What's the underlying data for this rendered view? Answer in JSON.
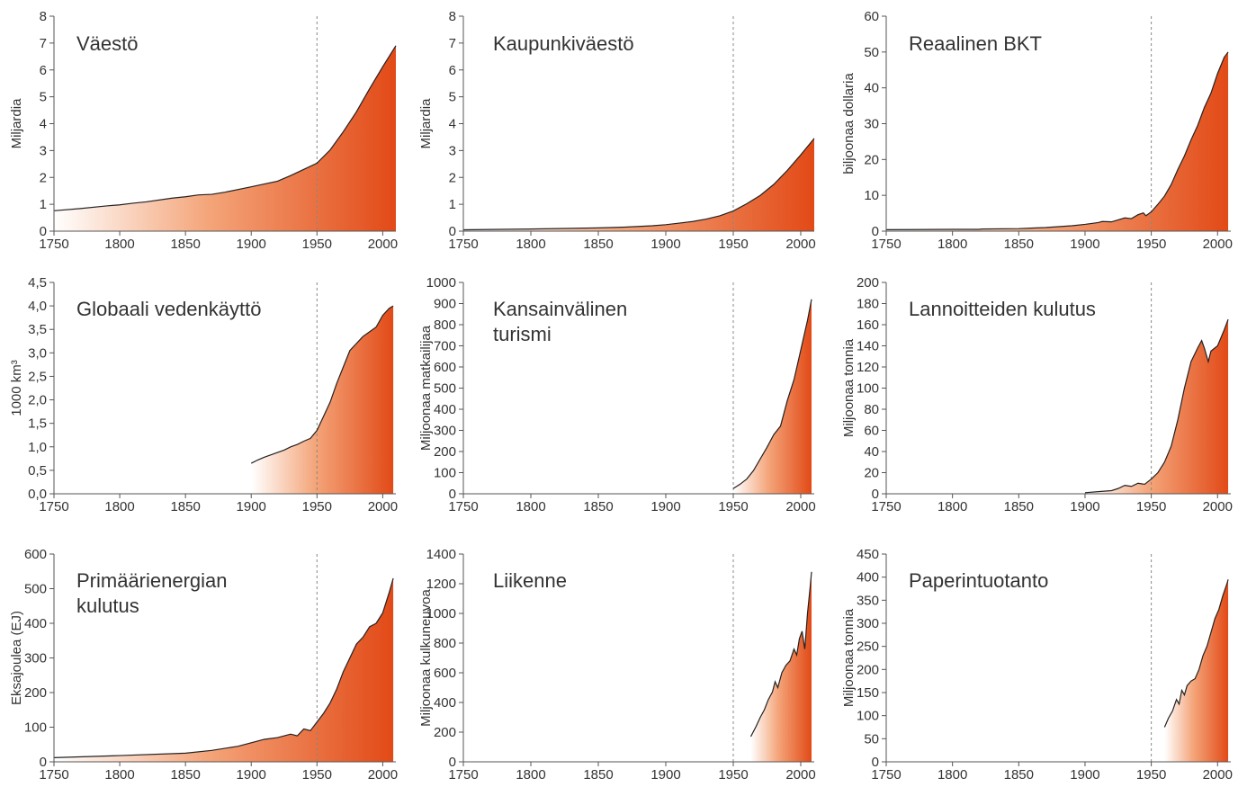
{
  "colors": {
    "fill_start": "#ffffff",
    "fill_end": "#e24a17",
    "line": "#222222",
    "axis": "#555555",
    "reference_line": "#888888"
  },
  "reference_line_year": 1950,
  "chart_data": [
    {
      "type": "area",
      "title": "Väestö",
      "title_lines": [
        "Väestö"
      ],
      "xlabel": "",
      "ylabel": "Miljardia",
      "xlim": [
        1750,
        2010
      ],
      "ylim": [
        0,
        8
      ],
      "xticks": [
        1750,
        1800,
        1850,
        1900,
        1950,
        2000
      ],
      "yticks": [
        0,
        1,
        2,
        3,
        4,
        5,
        6,
        7,
        8
      ],
      "ytick_labels": [
        "0",
        "1",
        "2",
        "3",
        "4",
        "5",
        "6",
        "7",
        "8"
      ],
      "fill_start_year": 1750,
      "x": [
        1750,
        1770,
        1790,
        1800,
        1810,
        1820,
        1840,
        1850,
        1860,
        1870,
        1880,
        1900,
        1920,
        1930,
        1940,
        1950,
        1960,
        1970,
        1980,
        1990,
        2000,
        2010
      ],
      "values": [
        0.76,
        0.84,
        0.94,
        0.98,
        1.04,
        1.09,
        1.23,
        1.28,
        1.35,
        1.37,
        1.45,
        1.65,
        1.86,
        2.07,
        2.3,
        2.53,
        3.02,
        3.7,
        4.44,
        5.3,
        6.12,
        6.9
      ]
    },
    {
      "type": "area",
      "title": "Kaupunkiväestö",
      "title_lines": [
        "Kaupunkiväestö"
      ],
      "xlabel": "",
      "ylabel": "Miljardia",
      "xlim": [
        1750,
        2010
      ],
      "ylim": [
        0,
        8
      ],
      "xticks": [
        1750,
        1800,
        1850,
        1900,
        1950,
        2000
      ],
      "yticks": [
        0,
        1,
        2,
        3,
        4,
        5,
        6,
        7,
        8
      ],
      "ytick_labels": [
        "0",
        "1",
        "2",
        "3",
        "4",
        "5",
        "6",
        "7",
        "8"
      ],
      "fill_start_year": 1750,
      "x": [
        1750,
        1800,
        1850,
        1870,
        1890,
        1900,
        1910,
        1920,
        1930,
        1940,
        1950,
        1960,
        1970,
        1980,
        1990,
        2000,
        2010
      ],
      "values": [
        0.05,
        0.08,
        0.12,
        0.15,
        0.2,
        0.24,
        0.3,
        0.36,
        0.45,
        0.57,
        0.75,
        1.02,
        1.33,
        1.74,
        2.26,
        2.84,
        3.45
      ]
    },
    {
      "type": "area",
      "title": "Reaalinen BKT",
      "title_lines": [
        "Reaalinen BKT"
      ],
      "xlabel": "",
      "ylabel": "biljoonaa dollaria",
      "xlim": [
        1750,
        2010
      ],
      "ylim": [
        0,
        60
      ],
      "xticks": [
        1750,
        1800,
        1850,
        1900,
        1950,
        2000
      ],
      "yticks": [
        0,
        10,
        20,
        30,
        40,
        50,
        60
      ],
      "ytick_labels": [
        "0",
        "10",
        "20",
        "30",
        "40",
        "50",
        "60"
      ],
      "fill_start_year": 1750,
      "x": [
        1750,
        1800,
        1820,
        1822,
        1850,
        1870,
        1890,
        1900,
        1910,
        1913,
        1920,
        1930,
        1935,
        1940,
        1944,
        1946,
        1950,
        1955,
        1960,
        1965,
        1970,
        1975,
        1980,
        1985,
        1990,
        1995,
        2000,
        2005,
        2008
      ],
      "values": [
        0.4,
        0.5,
        0.5,
        0.6,
        0.7,
        1.0,
        1.5,
        1.9,
        2.4,
        2.7,
        2.6,
        3.7,
        3.5,
        4.6,
        5.1,
        4.3,
        5.4,
        7.5,
        9.8,
        13.0,
        17.2,
        21.0,
        25.5,
        29.5,
        34.5,
        38.5,
        44.0,
        48.5,
        50.0
      ]
    },
    {
      "type": "area",
      "title": "Globaali vedenkäyttö",
      "title_lines": [
        "Globaali vedenkäyttö"
      ],
      "xlabel": "",
      "ylabel": "1000 km³",
      "xlim": [
        1750,
        2010
      ],
      "ylim": [
        0,
        4.5
      ],
      "xticks": [
        1750,
        1800,
        1850,
        1900,
        1950,
        2000
      ],
      "yticks": [
        0,
        0.5,
        1,
        1.5,
        2,
        2.5,
        3,
        3.5,
        4,
        4.5
      ],
      "ytick_labels": [
        "0,0",
        "0,5",
        "1,0",
        "1,5",
        "2,0",
        "2,5",
        "3,0",
        "3,5",
        "4,0",
        "4,5"
      ],
      "fill_start_year": 1900,
      "x": [
        1900,
        1905,
        1910,
        1915,
        1920,
        1925,
        1930,
        1935,
        1940,
        1945,
        1950,
        1955,
        1960,
        1965,
        1970,
        1975,
        1980,
        1985,
        1990,
        1995,
        2000,
        2005,
        2008
      ],
      "values": [
        0.65,
        0.72,
        0.78,
        0.83,
        0.88,
        0.93,
        1.0,
        1.05,
        1.12,
        1.18,
        1.35,
        1.65,
        1.95,
        2.35,
        2.7,
        3.05,
        3.2,
        3.35,
        3.45,
        3.55,
        3.8,
        3.95,
        4.0
      ]
    },
    {
      "type": "area",
      "title": "Kansainvälinen turismi",
      "title_lines": [
        "Kansainvälinen",
        "turismi"
      ],
      "xlabel": "",
      "ylabel": "Miljoonaa matkailijaa",
      "xlim": [
        1750,
        2010
      ],
      "ylim": [
        0,
        1000
      ],
      "xticks": [
        1750,
        1800,
        1850,
        1900,
        1950,
        2000
      ],
      "yticks": [
        0,
        100,
        200,
        300,
        400,
        500,
        600,
        700,
        800,
        900,
        1000
      ],
      "ytick_labels": [
        "0",
        "100",
        "200",
        "300",
        "400",
        "500",
        "600",
        "700",
        "800",
        "900",
        "1000"
      ],
      "fill_start_year": 1950,
      "x": [
        1950,
        1955,
        1960,
        1965,
        1970,
        1975,
        1980,
        1985,
        1990,
        1995,
        2000,
        2005,
        2008
      ],
      "values": [
        25,
        45,
        70,
        110,
        165,
        220,
        280,
        320,
        440,
        540,
        680,
        820,
        920
      ]
    },
    {
      "type": "area",
      "title": "Lannoitteiden kulutus",
      "title_lines": [
        "Lannoitteiden kulutus"
      ],
      "xlabel": "",
      "ylabel": "Miljoonaa tonnia",
      "xlim": [
        1750,
        2010
      ],
      "ylim": [
        0,
        200
      ],
      "xticks": [
        1750,
        1800,
        1850,
        1900,
        1950,
        2000
      ],
      "yticks": [
        0,
        20,
        40,
        60,
        80,
        100,
        120,
        140,
        160,
        180,
        200
      ],
      "ytick_labels": [
        "0",
        "20",
        "40",
        "60",
        "80",
        "100",
        "120",
        "140",
        "160",
        "180",
        "200"
      ],
      "fill_start_year": 1900,
      "x": [
        1900,
        1910,
        1920,
        1925,
        1930,
        1935,
        1940,
        1945,
        1950,
        1955,
        1960,
        1965,
        1970,
        1975,
        1980,
        1985,
        1988,
        1990,
        1993,
        1995,
        2000,
        2005,
        2008
      ],
      "values": [
        1,
        2,
        3,
        5,
        8,
        7,
        10,
        9,
        14,
        20,
        30,
        45,
        70,
        100,
        125,
        138,
        145,
        138,
        125,
        135,
        140,
        155,
        165
      ]
    },
    {
      "type": "area",
      "title": "Primäärienergian kulutus",
      "title_lines": [
        "Primäärienergian",
        "kulutus"
      ],
      "xlabel": "",
      "ylabel": "Eksajoulea (EJ)",
      "xlim": [
        1750,
        2010
      ],
      "ylim": [
        0,
        600
      ],
      "xticks": [
        1750,
        1800,
        1850,
        1900,
        1950,
        2000
      ],
      "yticks": [
        0,
        100,
        200,
        300,
        400,
        500,
        600
      ],
      "ytick_labels": [
        "0",
        "100",
        "200",
        "300",
        "400",
        "500",
        "600"
      ],
      "fill_start_year": 1750,
      "x": [
        1750,
        1800,
        1850,
        1870,
        1890,
        1900,
        1910,
        1920,
        1930,
        1935,
        1940,
        1945,
        1950,
        1955,
        1960,
        1965,
        1970,
        1975,
        1980,
        1985,
        1990,
        1995,
        2000,
        2005,
        2008
      ],
      "values": [
        12,
        18,
        25,
        33,
        45,
        55,
        65,
        70,
        80,
        75,
        95,
        90,
        115,
        140,
        170,
        210,
        260,
        300,
        340,
        360,
        390,
        400,
        430,
        490,
        530
      ]
    },
    {
      "type": "area",
      "title": "Liikenne",
      "title_lines": [
        "Liikenne"
      ],
      "xlabel": "",
      "ylabel": "Miljoonaa kulkuneuvoa",
      "xlim": [
        1750,
        2010
      ],
      "ylim": [
        0,
        1400
      ],
      "xticks": [
        1750,
        1800,
        1850,
        1900,
        1950,
        2000
      ],
      "yticks": [
        0,
        200,
        400,
        600,
        800,
        1000,
        1200,
        1400
      ],
      "ytick_labels": [
        "0",
        "200",
        "400",
        "600",
        "800",
        "1000",
        "1200",
        "1400"
      ],
      "fill_start_year": 1963,
      "x": [
        1963,
        1967,
        1970,
        1973,
        1976,
        1979,
        1981,
        1983,
        1986,
        1989,
        1992,
        1995,
        1997,
        1999,
        2001,
        2003,
        2005,
        2007,
        2008
      ],
      "values": [
        170,
        240,
        300,
        350,
        420,
        470,
        540,
        500,
        600,
        650,
        680,
        760,
        720,
        830,
        880,
        760,
        1000,
        1180,
        1280
      ]
    },
    {
      "type": "area",
      "title": "Paperintuotanto",
      "title_lines": [
        "Paperintuotanto"
      ],
      "xlabel": "",
      "ylabel": "Miljoonaa tonnia",
      "xlim": [
        1750,
        2010
      ],
      "ylim": [
        0,
        450
      ],
      "xticks": [
        1750,
        1800,
        1850,
        1900,
        1950,
        2000
      ],
      "yticks": [
        0,
        50,
        100,
        150,
        200,
        250,
        300,
        350,
        400,
        450
      ],
      "ytick_labels": [
        "0",
        "50",
        "100",
        "150",
        "200",
        "250",
        "300",
        "350",
        "400",
        "450"
      ],
      "fill_start_year": 1960,
      "x": [
        1960,
        1963,
        1966,
        1969,
        1971,
        1973,
        1975,
        1977,
        1980,
        1983,
        1986,
        1989,
        1992,
        1995,
        1998,
        2001,
        2004,
        2007,
        2008
      ],
      "values": [
        75,
        95,
        110,
        135,
        125,
        155,
        145,
        165,
        175,
        180,
        200,
        230,
        250,
        280,
        310,
        330,
        360,
        385,
        395
      ]
    }
  ]
}
